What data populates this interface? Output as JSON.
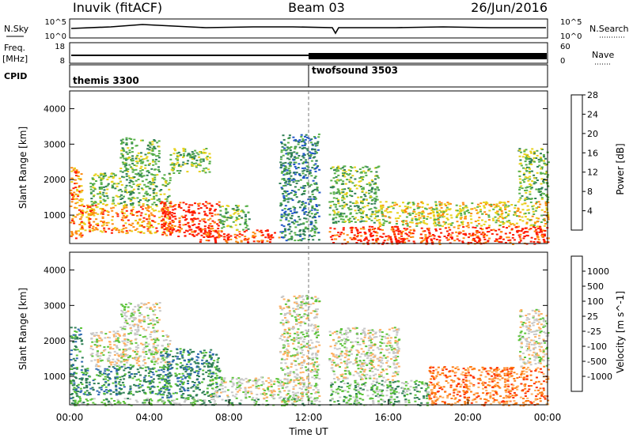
{
  "header": {
    "station": "Inuvik (fitACF)",
    "beam": "Beam 03",
    "date": "26/Jun/2016"
  },
  "strip_panels": {
    "nsky": {
      "left_label": "N.Sky",
      "right_label": "N.Search",
      "tick_top": "10^5",
      "tick_bottom": "10^0",
      "right_tick_top": "10^5",
      "right_tick_bottom": "10^0"
    },
    "freq": {
      "left_label_1": "Freq.",
      "left_label_2": "[MHz]",
      "right_label": "Nave",
      "ticks_left": [
        "18",
        "8"
      ],
      "ticks_right": [
        "60",
        "0"
      ]
    },
    "cpid": {
      "label": "CPID",
      "modes": [
        {
          "name": "themis 3300",
          "start_hour": 0
        },
        {
          "name": "twofsound 3503",
          "start_hour": 12
        }
      ]
    }
  },
  "chart_data": [
    {
      "type": "heatmap",
      "title": "",
      "ylabel": "Slant Range [km]",
      "xlabel": "",
      "xlim": [
        0,
        24
      ],
      "ylim": [
        200,
        4500
      ],
      "yticks": [
        1000,
        2000,
        3000,
        4000
      ],
      "colorbar": {
        "label": "Power [dB]",
        "ticks": [
          "4",
          "8",
          "12",
          "16",
          "20",
          "24",
          "28"
        ],
        "colors": [
          "#0a1cff",
          "#1f55c8",
          "#2f7f55",
          "#58b04a",
          "#e8d21a",
          "#ff8a10",
          "#ff1a00"
        ]
      },
      "regions": [
        {
          "t0": 0.0,
          "t1": 0.6,
          "r0": 300,
          "r1": 2400,
          "level": 5
        },
        {
          "t0": 0.5,
          "t1": 5.0,
          "r0": 500,
          "r1": 1300,
          "level": 5
        },
        {
          "t0": 1.0,
          "t1": 5.0,
          "r0": 1300,
          "r1": 2200,
          "level": 3
        },
        {
          "t0": 2.5,
          "t1": 4.5,
          "r0": 2200,
          "r1": 3200,
          "level": 3
        },
        {
          "t0": 4.5,
          "t1": 7.5,
          "r0": 400,
          "r1": 1400,
          "level": 6
        },
        {
          "t0": 5.0,
          "t1": 7.0,
          "r0": 2200,
          "r1": 2900,
          "level": 3
        },
        {
          "t0": 6.5,
          "t1": 10.5,
          "r0": 250,
          "r1": 600,
          "level": 6
        },
        {
          "t0": 7.5,
          "t1": 9.0,
          "r0": 600,
          "r1": 1300,
          "level": 3
        },
        {
          "t0": 10.5,
          "t1": 12.5,
          "r0": 300,
          "r1": 3300,
          "level": 2
        },
        {
          "t0": 13.0,
          "t1": 15.5,
          "r0": 800,
          "r1": 2400,
          "level": 3
        },
        {
          "t0": 13.0,
          "t1": 24.0,
          "r0": 200,
          "r1": 700,
          "level": 6
        },
        {
          "t0": 15.5,
          "t1": 24.0,
          "r0": 700,
          "r1": 1400,
          "level": 4
        },
        {
          "t0": 22.5,
          "t1": 24.0,
          "r0": 1400,
          "r1": 2900,
          "level": 3
        }
      ]
    },
    {
      "type": "heatmap",
      "title": "",
      "ylabel": "Slant Range [km]",
      "xlabel": "Time UT",
      "xlim": [
        0,
        24
      ],
      "ylim": [
        200,
        4500
      ],
      "xticks": [
        "00:00",
        "04:00",
        "08:00",
        "12:00",
        "16:00",
        "20:00",
        "00:00"
      ],
      "yticks": [
        1000,
        2000,
        3000,
        4000
      ],
      "colorbar": {
        "label": "Velocity [m s^-1]",
        "ticks": [
          "1000",
          "500",
          "100",
          "25",
          "-25",
          "-100",
          "-500",
          "-1000"
        ],
        "colors": [
          "#1f3cb5",
          "#2f6ab0",
          "#2f7f55",
          "#5cc43a",
          "#c8c8c8",
          "#ffb060",
          "#ff7a10",
          "#ff3000",
          "#e00000"
        ]
      },
      "regions": [
        {
          "t0": 0.0,
          "t1": 0.6,
          "r0": 200,
          "r1": 2400,
          "level": 2
        },
        {
          "t0": 0.5,
          "t1": 5.0,
          "r0": 500,
          "r1": 1300,
          "level": 2
        },
        {
          "t0": 1.0,
          "t1": 5.0,
          "r0": 1300,
          "r1": 2300,
          "level": 4
        },
        {
          "t0": 2.5,
          "t1": 4.5,
          "r0": 2300,
          "r1": 3100,
          "level": 4
        },
        {
          "t0": 4.5,
          "t1": 7.5,
          "r0": 400,
          "r1": 1800,
          "level": 2
        },
        {
          "t0": 0.0,
          "t1": 12.5,
          "r0": 200,
          "r1": 400,
          "level": 3
        },
        {
          "t0": 7.0,
          "t1": 10.5,
          "r0": 400,
          "r1": 1000,
          "level": 4
        },
        {
          "t0": 10.5,
          "t1": 12.5,
          "r0": 300,
          "r1": 3300,
          "level": 4
        },
        {
          "t0": 13.0,
          "t1": 16.5,
          "r0": 900,
          "r1": 2400,
          "level": 4
        },
        {
          "t0": 13.0,
          "t1": 18.0,
          "r0": 200,
          "r1": 900,
          "level": 3
        },
        {
          "t0": 18.0,
          "t1": 24.0,
          "r0": 200,
          "r1": 1300,
          "level": 6
        },
        {
          "t0": 22.5,
          "t1": 24.0,
          "r0": 1300,
          "r1": 2900,
          "level": 4
        }
      ]
    }
  ]
}
